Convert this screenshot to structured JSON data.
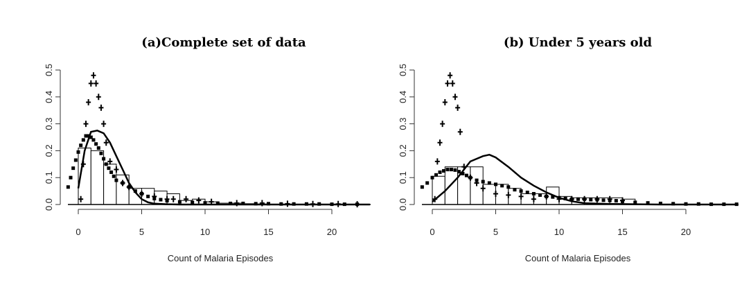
{
  "chart_data": [
    {
      "type": "bar",
      "title": "(a)Complete set of data",
      "xlabel": "Count of Malaria Episodes",
      "ylabel": "",
      "xlim": [
        -0.5,
        23
      ],
      "ylim": [
        0,
        0.5
      ],
      "xticks": [
        0,
        5,
        10,
        15,
        20
      ],
      "yticks": [
        0.0,
        0.1,
        0.2,
        0.3,
        0.4,
        0.5
      ],
      "grid": false,
      "histogram": {
        "bin_edges": [
          0,
          1,
          2,
          3,
          4,
          5,
          6,
          7,
          8,
          9,
          10,
          11,
          12,
          13,
          14,
          15
        ],
        "values": [
          0.21,
          0.2,
          0.15,
          0.11,
          0.06,
          0.06,
          0.05,
          0.04,
          0.015,
          0.02,
          0.01,
          0.005,
          0.005,
          0.003,
          0.002
        ]
      },
      "series": [
        {
          "style": "line",
          "x": [
            0,
            0.5,
            1,
            1.5,
            2,
            2.5,
            3,
            3.5,
            4,
            4.5,
            5,
            5.5,
            6,
            7,
            8,
            9,
            10,
            12,
            15,
            20,
            23
          ],
          "values": [
            0.06,
            0.2,
            0.27,
            0.275,
            0.265,
            0.23,
            0.18,
            0.13,
            0.08,
            0.045,
            0.02,
            0.008,
            0.003,
            0.001,
            0,
            0,
            0,
            0,
            0,
            0,
            0
          ]
        },
        {
          "style": "points",
          "x": [
            -0.8,
            -0.6,
            -0.4,
            -0.2,
            0,
            0.2,
            0.4,
            0.6,
            0.8,
            1,
            1.2,
            1.4,
            1.6,
            1.8,
            2,
            2.2,
            2.4,
            2.6,
            2.8,
            3,
            3.5,
            4,
            4.5,
            5,
            5.5,
            6,
            6.5,
            7,
            8,
            9,
            10,
            11,
            12,
            13,
            14,
            15,
            16,
            17,
            18,
            19,
            20,
            21,
            22
          ],
          "values": [
            0.065,
            0.1,
            0.135,
            0.165,
            0.195,
            0.22,
            0.24,
            0.255,
            0.255,
            0.25,
            0.24,
            0.225,
            0.21,
            0.19,
            0.17,
            0.15,
            0.135,
            0.12,
            0.105,
            0.09,
            0.08,
            0.065,
            0.05,
            0.04,
            0.03,
            0.022,
            0.018,
            0.014,
            0.01,
            0.008,
            0.006,
            0.005,
            0.004,
            0.004,
            0.003,
            0.003,
            0.002,
            0.002,
            0.002,
            0.002,
            0.001,
            0.001,
            0.001
          ]
        },
        {
          "style": "plus",
          "x": [
            0.2,
            0.4,
            0.6,
            0.8,
            1.0,
            1.2,
            1.4,
            1.6,
            1.8,
            2.0,
            2.2,
            2.5,
            3,
            3.5,
            4,
            5,
            6,
            7,
            7.5,
            8.5,
            9.5,
            10.5,
            12.5,
            14.5,
            16.5,
            18.5,
            20.5,
            22
          ],
          "values": [
            0.02,
            0.15,
            0.3,
            0.38,
            0.45,
            0.48,
            0.45,
            0.4,
            0.36,
            0.3,
            0.23,
            0.16,
            0.13,
            0.08,
            0.065,
            0.04,
            0.03,
            0.02,
            0.02,
            0.02,
            0.015,
            0.01,
            0.005,
            0.005,
            0.003,
            0.002,
            0.002,
            0.001
          ]
        }
      ]
    },
    {
      "type": "bar",
      "title": "(b) Under 5 years old",
      "xlabel": "Count of Malaria Episodes",
      "ylabel": "",
      "xlim": [
        -0.5,
        24
      ],
      "ylim": [
        0,
        0.5
      ],
      "xticks": [
        0,
        5,
        10,
        15,
        20
      ],
      "yticks": [
        0.0,
        0.1,
        0.2,
        0.3,
        0.4,
        0.5
      ],
      "grid": false,
      "histogram": {
        "bin_edges": [
          0,
          1,
          2,
          3,
          4,
          5,
          6,
          7,
          8,
          9,
          10,
          11,
          12,
          13,
          14,
          15,
          16
        ],
        "values": [
          0.105,
          0.14,
          0.14,
          0.14,
          0.075,
          0.075,
          0.06,
          0.04,
          0.04,
          0.065,
          0.03,
          0.025,
          0.025,
          0.025,
          0.025,
          0.02
        ]
      },
      "series": [
        {
          "style": "line",
          "x": [
            0,
            1,
            2,
            3,
            4,
            4.5,
            5,
            6,
            7,
            8,
            9,
            10,
            11,
            12,
            14,
            16,
            18,
            20,
            24
          ],
          "values": [
            0.01,
            0.05,
            0.1,
            0.16,
            0.18,
            0.185,
            0.175,
            0.14,
            0.1,
            0.07,
            0.045,
            0.025,
            0.012,
            0.005,
            0.002,
            0.001,
            0,
            0,
            0
          ],
          "note": ""
        },
        {
          "style": "points",
          "x": [
            -0.8,
            -0.4,
            0,
            0.3,
            0.6,
            0.9,
            1.2,
            1.5,
            1.8,
            2.1,
            2.4,
            2.7,
            3,
            3.5,
            4,
            4.5,
            5,
            5.5,
            6,
            6.5,
            7,
            7.5,
            8,
            8.5,
            9,
            9.5,
            10,
            10.5,
            11,
            11.5,
            12,
            12.5,
            13,
            13.5,
            14,
            14.5,
            15,
            16,
            17,
            18,
            19,
            20,
            21,
            22,
            23,
            24
          ],
          "values": [
            0.065,
            0.08,
            0.1,
            0.11,
            0.12,
            0.125,
            0.13,
            0.13,
            0.128,
            0.122,
            0.115,
            0.108,
            0.1,
            0.09,
            0.085,
            0.08,
            0.075,
            0.07,
            0.065,
            0.055,
            0.05,
            0.045,
            0.04,
            0.035,
            0.03,
            0.028,
            0.025,
            0.022,
            0.02,
            0.02,
            0.02,
            0.018,
            0.018,
            0.016,
            0.015,
            0.014,
            0.012,
            0.008,
            0.006,
            0.004,
            0.003,
            0.002,
            0.002,
            0.001,
            0.001,
            0.001
          ]
        },
        {
          "style": "plus",
          "x": [
            0.2,
            0.4,
            0.6,
            0.8,
            1.0,
            1.2,
            1.4,
            1.6,
            1.8,
            2.0,
            2.2,
            2.5,
            3,
            3.5,
            4,
            5,
            6,
            7,
            8,
            9,
            10,
            11,
            12,
            13,
            14,
            15
          ],
          "values": [
            0.02,
            0.16,
            0.23,
            0.3,
            0.38,
            0.45,
            0.48,
            0.45,
            0.4,
            0.36,
            0.27,
            0.14,
            0.1,
            0.08,
            0.06,
            0.04,
            0.035,
            0.03,
            0.02,
            0.03,
            0.02,
            0.02,
            0.02,
            0.02,
            0.02,
            0.015
          ]
        }
      ]
    }
  ]
}
